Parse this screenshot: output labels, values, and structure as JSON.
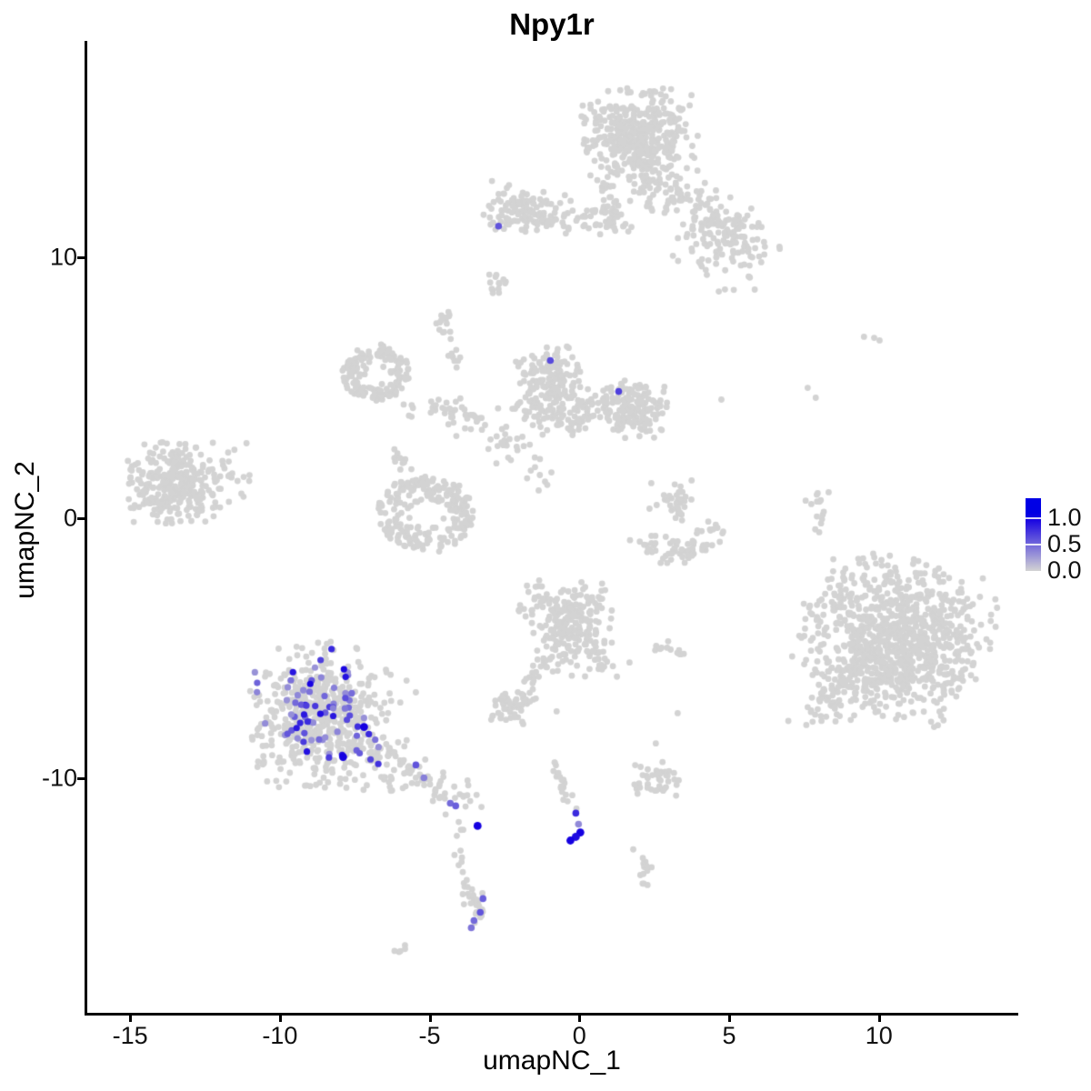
{
  "chart_data": {
    "type": "scatter",
    "title": "Npy1r",
    "xlabel": "umapNC_1",
    "ylabel": "umapNC_2",
    "xlim": [
      -16.46,
      14.62
    ],
    "ylim": [
      -19.04,
      18.31
    ],
    "x_ticks": [
      -15,
      -10,
      -5,
      0,
      5,
      10
    ],
    "x_tick_labels": [
      "-15",
      "-10",
      "-5",
      "0",
      "5",
      "10"
    ],
    "y_ticks": [
      10,
      0,
      -10
    ],
    "y_tick_labels": [
      "10",
      "0",
      "-10"
    ],
    "grid": false,
    "legend": {
      "position": "right",
      "labels": [
        "1.0",
        "0.5",
        "0.0"
      ],
      "values": [
        1.0,
        0.5,
        0.0
      ],
      "bar_top_value": 1.39,
      "bar_bottom_value": 0.0
    },
    "colors": {
      "low": "#d3d3d3",
      "high": "#1500e1",
      "background": "#ffffff",
      "axis": "#000000"
    },
    "grey_clusters": [
      {
        "type": "blob",
        "cx": 2.05,
        "cy": 14.7,
        "rx": 1.8,
        "ry": 1.65,
        "rot": 0,
        "n": 400
      },
      {
        "type": "path",
        "pts": [
          [
            1.91,
            13.09
          ],
          [
            4.34,
            11.69
          ],
          [
            5.86,
            10.65
          ]
        ],
        "spread": 0.45,
        "n": 160
      },
      {
        "type": "blob",
        "cx": 4.8,
        "cy": 10.1,
        "rx": 1.5,
        "ry": 1.3,
        "rot": -30,
        "n": 70
      },
      {
        "type": "path",
        "pts": [
          [
            0.94,
            13.26
          ],
          [
            1.0,
            11.0
          ]
        ],
        "spread": 0.18,
        "n": 28
      },
      {
        "type": "blob",
        "cx": -1.88,
        "cy": 11.8,
        "rx": 1.25,
        "ry": 0.85,
        "rot": -10,
        "n": 110
      },
      {
        "type": "path",
        "pts": [
          [
            -0.67,
            11.69
          ],
          [
            1.61,
            11.34
          ]
        ],
        "spread": 0.3,
        "n": 50
      },
      {
        "type": "path",
        "pts": [
          [
            -2.85,
            9.42
          ],
          [
            -2.58,
            8.66
          ]
        ],
        "spread": 0.1,
        "n": 7
      },
      {
        "type": "ring",
        "cx": -6.8,
        "cy": 5.55,
        "r_out": 1.12,
        "r_in": 0.4,
        "n": 170
      },
      {
        "type": "path",
        "pts": [
          [
            -5.68,
            4.36
          ],
          [
            -4.16,
            4.01
          ],
          [
            -3.1,
            3.77
          ]
        ],
        "spread": 0.25,
        "n": 45
      },
      {
        "type": "blob",
        "cx": -4.55,
        "cy": 7.57,
        "rx": 0.35,
        "ry": 0.5,
        "rot": 0,
        "n": 14
      },
      {
        "type": "path",
        "pts": [
          [
            -4.22,
            6.74
          ],
          [
            -4.07,
            5.69
          ]
        ],
        "spread": 0.1,
        "n": 9
      },
      {
        "type": "path",
        "pts": [
          [
            -3.01,
            8.62
          ],
          [
            -2.46,
            9.21
          ]
        ],
        "spread": 0.08,
        "n": 7
      },
      {
        "type": "blob",
        "cx": -0.91,
        "cy": 5.24,
        "rx": 1.0,
        "ry": 1.35,
        "rot": 15,
        "n": 170
      },
      {
        "type": "path",
        "pts": [
          [
            -1.97,
            4.19
          ],
          [
            -0.52,
            3.77
          ],
          [
            0.7,
            3.91
          ]
        ],
        "spread": 0.35,
        "n": 70
      },
      {
        "type": "blob",
        "cx": 1.7,
        "cy": 4.19,
        "rx": 1.25,
        "ry": 1.15,
        "rot": -15,
        "n": 180
      },
      {
        "type": "blob",
        "cx": -2.49,
        "cy": 3.14,
        "rx": 0.95,
        "ry": 1.2,
        "rot": 0,
        "n": 26
      },
      {
        "type": "path",
        "pts": [
          [
            -1.58,
            2.27
          ],
          [
            -1.12,
            1.05
          ]
        ],
        "spread": 0.25,
        "n": 10
      },
      {
        "type": "blob",
        "cx": -13.51,
        "cy": 1.33,
        "rx": 1.45,
        "ry": 1.5,
        "rot": 0,
        "n": 300
      },
      {
        "type": "blob",
        "cx": -11.51,
        "cy": 1.75,
        "rx": 0.8,
        "ry": 1.1,
        "rot": 0,
        "n": 22
      },
      {
        "type": "ring",
        "cx": -5.13,
        "cy": 0.14,
        "r_out": 1.58,
        "r_in": 0.5,
        "n": 230
      },
      {
        "type": "path",
        "pts": [
          [
            -5.83,
            1.75
          ],
          [
            -6.22,
            2.62
          ]
        ],
        "spread": 0.15,
        "n": 12
      },
      {
        "type": "blob",
        "cx": 3.34,
        "cy": 0.63,
        "rx": 0.45,
        "ry": 0.85,
        "rot": 0,
        "n": 28
      },
      {
        "type": "points",
        "pts": [
          [
            2.4,
            1.33
          ],
          [
            2.58,
            0.49
          ],
          [
            2.34,
            0.35
          ],
          [
            2.82,
            0.87
          ]
        ]
      },
      {
        "type": "path",
        "pts": [
          [
            1.97,
            -0.94
          ],
          [
            2.67,
            -1.22
          ],
          [
            3.43,
            -1.33
          ],
          [
            4.19,
            -0.94
          ],
          [
            4.58,
            -0.35
          ]
        ],
        "spread": 0.22,
        "n": 70
      },
      {
        "type": "path",
        "pts": [
          [
            7.95,
            0.94
          ],
          [
            8.01,
            0.35
          ],
          [
            7.95,
            -0.52
          ]
        ],
        "spread": 0.12,
        "n": 14
      },
      {
        "type": "points",
        "pts": [
          [
            8.32,
            0.98
          ],
          [
            9.5,
            6.95
          ],
          [
            9.84,
            6.91
          ],
          [
            10.02,
            6.81
          ],
          [
            7.62,
            4.99
          ],
          [
            7.89,
            4.61
          ],
          [
            4.74,
            4.54
          ]
        ]
      },
      {
        "type": "blob",
        "cx": 10.56,
        "cy": -4.64,
        "rx": 2.85,
        "ry": 2.95,
        "rot": -20,
        "n": 950
      },
      {
        "type": "path",
        "pts": [
          [
            8.9,
            -6.28
          ],
          [
            8.14,
            -7.33
          ]
        ],
        "spread": 0.5,
        "n": 60
      },
      {
        "type": "blob",
        "cx": 7.98,
        "cy": -3.14,
        "rx": 0.7,
        "ry": 1.3,
        "rot": 0,
        "n": 10
      },
      {
        "type": "blob",
        "cx": -0.27,
        "cy": -4.12,
        "rx": 1.4,
        "ry": 1.85,
        "rot": 20,
        "n": 260
      },
      {
        "type": "path",
        "pts": [
          [
            -1.12,
            -5.24
          ],
          [
            -1.58,
            -6.11
          ],
          [
            -1.79,
            -6.35
          ]
        ],
        "spread": 0.15,
        "n": 18
      },
      {
        "type": "path",
        "pts": [
          [
            0.55,
            -5.24
          ],
          [
            0.94,
            -5.93
          ]
        ],
        "spread": 0.2,
        "n": 10
      },
      {
        "type": "blob",
        "cx": -2.22,
        "cy": -7.26,
        "rx": 0.7,
        "ry": 0.65,
        "rot": 0,
        "n": 55
      },
      {
        "type": "path",
        "pts": [
          [
            2.46,
            -4.96
          ],
          [
            3.37,
            -5.13
          ]
        ],
        "spread": 0.12,
        "n": 12
      },
      {
        "type": "points",
        "pts": [
          [
            -0.76,
            -7.43
          ],
          [
            3.28,
            -7.5
          ],
          [
            2.55,
            -8.66
          ]
        ]
      },
      {
        "type": "blob",
        "cx": 2.52,
        "cy": -10.12,
        "rx": 0.8,
        "ry": 0.7,
        "rot": 0,
        "n": 40
      },
      {
        "type": "blob",
        "cx": 2.28,
        "cy": -13.54,
        "rx": 0.6,
        "ry": 0.9,
        "rot": 0,
        "n": 13
      },
      {
        "type": "blob",
        "cx": -8.65,
        "cy": -7.68,
        "rx": 2.2,
        "ry": 2.7,
        "rot": 0,
        "n": 520
      },
      {
        "type": "path",
        "pts": [
          [
            -6.74,
            -8.73
          ],
          [
            -5.68,
            -9.77
          ],
          [
            -4.61,
            -10.54
          ],
          [
            -3.86,
            -11.1
          ]
        ],
        "spread": 0.38,
        "n": 90
      },
      {
        "type": "path",
        "pts": [
          [
            -4.07,
            -11.52
          ],
          [
            -3.98,
            -12.22
          ],
          [
            -4.04,
            -12.84
          ],
          [
            -3.89,
            -13.44
          ],
          [
            -3.76,
            -13.96
          ]
        ],
        "spread": 0.08,
        "n": 12
      },
      {
        "type": "blob",
        "cx": -3.49,
        "cy": -14.83,
        "rx": 0.35,
        "ry": 1.0,
        "rot": 10,
        "n": 26
      },
      {
        "type": "path",
        "pts": [
          [
            -6.1,
            -16.65
          ],
          [
            -5.77,
            -16.33
          ]
        ],
        "spread": 0.06,
        "n": 5
      },
      {
        "type": "points",
        "pts": [
          [
            -5.77,
            -6.25
          ],
          [
            -5.46,
            -6.7
          ],
          [
            -5.98,
            -7.09
          ],
          [
            -6.44,
            -5.93
          ]
        ]
      },
      {
        "type": "path",
        "pts": [
          [
            -0.79,
            -9.28
          ],
          [
            -0.7,
            -9.84
          ],
          [
            -0.52,
            -10.4
          ],
          [
            -0.4,
            -10.82
          ],
          [
            -0.3,
            -11.17
          ]
        ],
        "spread": 0.1,
        "n": 20
      }
    ],
    "expressing_clusters": [
      {
        "type": "colored_blob",
        "cx": -8.71,
        "cy": -7.4,
        "rx": 2.0,
        "ry": 2.2,
        "rot": 0,
        "n": 78,
        "vmin": 0.3,
        "vmax": 1.0
      }
    ],
    "expressing_points": [
      [
        -2.7,
        11.2,
        0.6
      ],
      [
        -0.97,
        6.04,
        0.65
      ],
      [
        1.31,
        4.85,
        0.7
      ],
      [
        -5.46,
        -9.49,
        0.6
      ],
      [
        -5.19,
        -9.98,
        0.4
      ],
      [
        -4.31,
        -10.96,
        0.5
      ],
      [
        -4.13,
        -11.06,
        0.55
      ],
      [
        -7.19,
        -8.03,
        1.0
      ],
      [
        -7.89,
        -9.18,
        1.0
      ],
      [
        -3.4,
        -11.83,
        1.0
      ],
      [
        -3.22,
        -14.62,
        0.55
      ],
      [
        -3.31,
        -15.15,
        0.6
      ],
      [
        -3.52,
        -15.46,
        0.5
      ],
      [
        -3.61,
        -15.74,
        0.45
      ],
      [
        -0.12,
        -11.34,
        0.8
      ],
      [
        -0.03,
        -11.76,
        0.35
      ],
      [
        0.03,
        -12.08,
        1.0
      ],
      [
        -0.12,
        -12.25,
        0.95
      ],
      [
        -0.3,
        -12.39,
        1.0
      ]
    ]
  }
}
